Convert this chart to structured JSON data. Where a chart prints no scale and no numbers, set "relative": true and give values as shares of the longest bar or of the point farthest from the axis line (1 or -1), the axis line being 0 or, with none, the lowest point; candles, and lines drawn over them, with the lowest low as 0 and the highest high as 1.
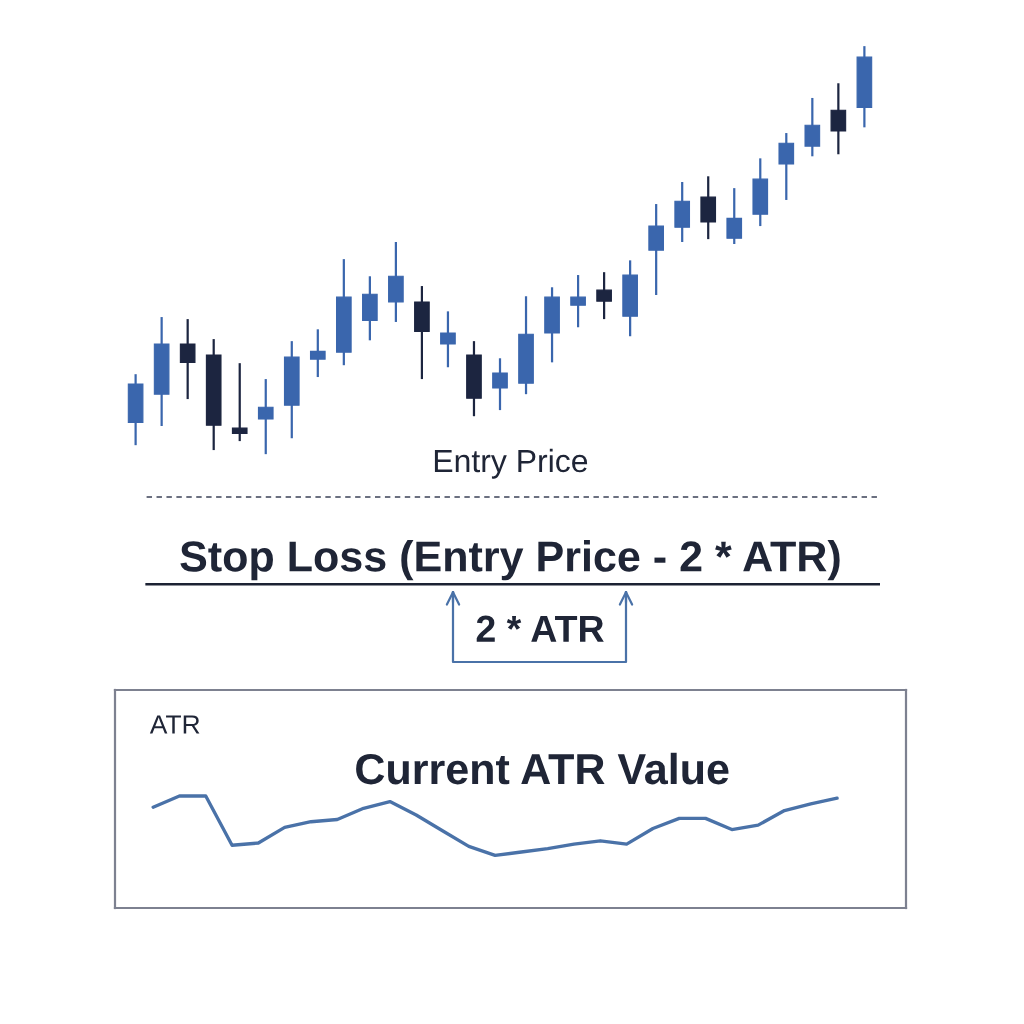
{
  "chart_data": [
    {
      "type": "candlestick",
      "relative": true,
      "categories": [
        null,
        null,
        null,
        null,
        null,
        null,
        null,
        null,
        null,
        null,
        null,
        null,
        null,
        null,
        null,
        null,
        null,
        null,
        null,
        null,
        null,
        null,
        null,
        null,
        null,
        null,
        null,
        null,
        null
      ],
      "ohlc": [
        [
          0.078,
          0.196,
          0.022,
          0.172
        ],
        [
          0.147,
          0.336,
          0.069,
          0.27
        ],
        [
          0.27,
          0.331,
          0.135,
          0.225
        ],
        [
          0.243,
          0.282,
          0.01,
          0.071
        ],
        [
          0.064,
          0.223,
          0.032,
          0.051
        ],
        [
          0.086,
          0.184,
          0.0,
          0.115
        ],
        [
          0.12,
          0.277,
          0.039,
          0.238
        ],
        [
          0.233,
          0.306,
          0.189,
          0.252
        ],
        [
          0.25,
          0.478,
          0.218,
          0.385
        ],
        [
          0.328,
          0.436,
          0.279,
          0.392
        ],
        [
          0.373,
          0.52,
          0.324,
          0.436
        ],
        [
          0.373,
          0.412,
          0.184,
          0.301
        ],
        [
          0.27,
          0.35,
          0.213,
          0.297
        ],
        [
          0.243,
          0.277,
          0.093,
          0.137
        ],
        [
          0.162,
          0.235,
          0.108,
          0.199
        ],
        [
          0.174,
          0.387,
          0.147,
          0.294
        ],
        [
          0.297,
          0.409,
          0.225,
          0.385
        ],
        [
          0.365,
          0.439,
          0.311,
          0.385
        ],
        [
          0.402,
          0.446,
          0.331,
          0.375
        ],
        [
          0.338,
          0.475,
          0.289,
          0.439
        ],
        [
          0.5,
          0.613,
          0.39,
          0.559
        ],
        [
          0.556,
          0.667,
          0.52,
          0.62
        ],
        [
          0.63,
          0.681,
          0.527,
          0.569
        ],
        [
          0.529,
          0.652,
          0.515,
          0.578
        ],
        [
          0.588,
          0.725,
          0.559,
          0.674
        ],
        [
          0.711,
          0.787,
          0.623,
          0.762
        ],
        [
          0.755,
          0.873,
          0.73,
          0.806
        ],
        [
          0.843,
          0.909,
          0.735,
          0.792
        ],
        [
          0.85,
          1.0,
          0.801,
          0.973
        ]
      ],
      "colors": [
        "#3a66ad",
        "#3a66ad",
        "#1c2540",
        "#1c2540",
        "#1c2540",
        "#3a66ad",
        "#3a66ad",
        "#3a66ad",
        "#3a66ad",
        "#3a66ad",
        "#3a66ad",
        "#1c2540",
        "#3a66ad",
        "#1c2540",
        "#3a66ad",
        "#3a66ad",
        "#3a66ad",
        "#3a66ad",
        "#1c2540",
        "#3a66ad",
        "#3a66ad",
        "#3a66ad",
        "#1c2540",
        "#3a66ad",
        "#3a66ad",
        "#3a66ad",
        "#3a66ad",
        "#1c2540",
        "#3a66ad"
      ],
      "ref_lines": [
        {
          "axis": "y",
          "value": -0.105,
          "label": "Entry Price",
          "color": "#6b7080",
          "line_style": "dashed"
        },
        {
          "axis": "y",
          "value": -0.319,
          "label": "Stop Loss (Entry Price - 2 * ATR)",
          "color": "#1c2233",
          "line_style": "solid"
        }
      ],
      "annotations": [
        "2 * ATR"
      ]
    },
    {
      "type": "line",
      "relative": true,
      "title": "ATR",
      "categories": [
        null,
        null,
        null,
        null,
        null,
        null,
        null,
        null,
        null,
        null,
        null,
        null,
        null,
        null,
        null,
        null,
        null,
        null,
        null,
        null,
        null,
        null,
        null,
        null,
        null,
        null,
        null
      ],
      "series": [
        {
          "color": "#4a72a8",
          "values": [
            0.9,
            1.0,
            1.0,
            0.56,
            0.58,
            0.72,
            0.77,
            0.79,
            0.89,
            0.95,
            0.83,
            0.69,
            0.55,
            0.47,
            0.5,
            0.53,
            0.57,
            0.6,
            0.57,
            0.71,
            0.8,
            0.8,
            0.7,
            0.74,
            0.87,
            0.93,
            0.98
          ]
        }
      ],
      "line_style": "solid",
      "marker": "none",
      "annotations": [
        "Current ATR Value"
      ]
    }
  ]
}
